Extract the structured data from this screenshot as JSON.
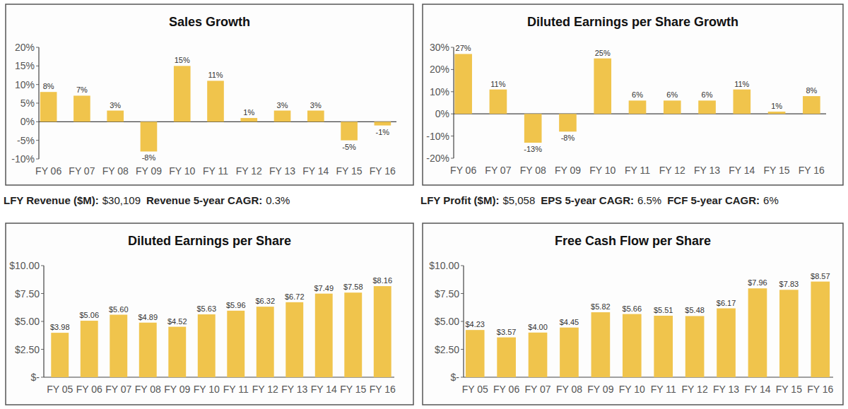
{
  "chart_data": [
    {
      "type": "bar",
      "title": "Sales Growth",
      "categories": [
        "FY 06",
        "FY 07",
        "FY 08",
        "FY 09",
        "FY 10",
        "FY 11",
        "FY 12",
        "FY 13",
        "FY 14",
        "FY 15",
        "FY 16"
      ],
      "values": [
        8,
        7,
        3,
        -8,
        15,
        11,
        1,
        3,
        3,
        -5,
        -1
      ],
      "value_labels": [
        "8%",
        "7%",
        "3%",
        "-8%",
        "15%",
        "11%",
        "1%",
        "3%",
        "3%",
        "-5%",
        "-1%"
      ],
      "color": "#f0c44c",
      "data_labels": true,
      "grid": false,
      "ylim": [
        -10,
        20
      ],
      "yticks": [
        {
          "value": -10,
          "label": "-10%"
        },
        {
          "value": -5,
          "label": "-5%"
        },
        {
          "value": 0,
          "label": "0%"
        },
        {
          "value": 5,
          "label": "5%"
        },
        {
          "value": 10,
          "label": "10%"
        },
        {
          "value": 15,
          "label": "15%"
        },
        {
          "value": 20,
          "label": "20%"
        }
      ],
      "annotations": [
        {
          "label": "LFY Revenue ($M):",
          "text": "$30,109"
        },
        {
          "label": "Revenue 5-year CAGR:",
          "text": "0.3%"
        }
      ]
    },
    {
      "type": "bar",
      "title": "Diluted Earnings per Share Growth",
      "categories": [
        "FY 06",
        "FY 07",
        "FY 08",
        "FY 09",
        "FY 10",
        "FY 11",
        "FY 12",
        "FY 13",
        "FY 14",
        "FY 15",
        "FY 16"
      ],
      "values": [
        27,
        11,
        -13,
        -8,
        25,
        6,
        6,
        6,
        11,
        1,
        8
      ],
      "value_labels": [
        "27%",
        "11%",
        "-13%",
        "-8%",
        "25%",
        "6%",
        "6%",
        "6%",
        "11%",
        "1%",
        "8%"
      ],
      "color": "#f0c44c",
      "data_labels": true,
      "grid": false,
      "ylim": [
        -20,
        30
      ],
      "yticks": [
        {
          "value": -20,
          "label": "-20%"
        },
        {
          "value": -10,
          "label": "-10%"
        },
        {
          "value": 0,
          "label": "0%"
        },
        {
          "value": 10,
          "label": "10%"
        },
        {
          "value": 20,
          "label": "20%"
        },
        {
          "value": 30,
          "label": "30%"
        }
      ],
      "annotations": [
        {
          "label": "LFY Profit ($M):",
          "text": "$5,058"
        },
        {
          "label": "EPS 5-year CAGR:",
          "text": "6.5%"
        },
        {
          "label": "FCF 5-year CAGR:",
          "text": "6%"
        }
      ]
    },
    {
      "type": "bar",
      "title": "Diluted Earnings per Share",
      "categories": [
        "FY 05",
        "FY 06",
        "FY 07",
        "FY 08",
        "FY 09",
        "FY 10",
        "FY 11",
        "FY 12",
        "FY 13",
        "FY 14",
        "FY 15",
        "FY 16"
      ],
      "values": [
        3.98,
        5.06,
        5.6,
        4.89,
        4.52,
        5.63,
        5.96,
        6.32,
        6.72,
        7.49,
        7.58,
        8.16
      ],
      "value_labels": [
        "$3.98",
        "$5.06",
        "$5.60",
        "$4.89",
        "$4.52",
        "$5.63",
        "$5.96",
        "$6.32",
        "$6.72",
        "$7.49",
        "$7.58",
        "$8.16"
      ],
      "color": "#f0c44c",
      "data_labels": true,
      "grid": false,
      "ylim": [
        0,
        10
      ],
      "yticks": [
        {
          "value": 0,
          "label": "$-"
        },
        {
          "value": 2.5,
          "label": "$2.50"
        },
        {
          "value": 5,
          "label": "$5.00"
        },
        {
          "value": 7.5,
          "label": "$7.50"
        },
        {
          "value": 10,
          "label": "$10.00"
        }
      ]
    },
    {
      "type": "bar",
      "title": "Free Cash Flow per Share",
      "categories": [
        "FY 05",
        "FY 06",
        "FY 07",
        "FY 08",
        "FY 09",
        "FY 10",
        "FY 11",
        "FY 12",
        "FY 13",
        "FY 14",
        "FY 15",
        "FY 16"
      ],
      "values": [
        4.23,
        3.57,
        4.0,
        4.45,
        5.82,
        5.66,
        5.51,
        5.48,
        6.17,
        7.96,
        7.83,
        8.57
      ],
      "value_labels": [
        "$4.23",
        "$3.57",
        "$4.00",
        "$4.45",
        "$5.82",
        "$5.66",
        "$5.51",
        "$5.48",
        "$6.17",
        "$7.96",
        "$7.83",
        "$8.57"
      ],
      "color": "#f0c44c",
      "data_labels": true,
      "grid": false,
      "ylim": [
        0,
        10
      ],
      "yticks": [
        {
          "value": 0,
          "label": "$-"
        },
        {
          "value": 2.5,
          "label": "$2.50"
        },
        {
          "value": 5,
          "label": "$5.00"
        },
        {
          "value": 7.5,
          "label": "$7.50"
        },
        {
          "value": 10,
          "label": "$10.00"
        }
      ]
    }
  ]
}
